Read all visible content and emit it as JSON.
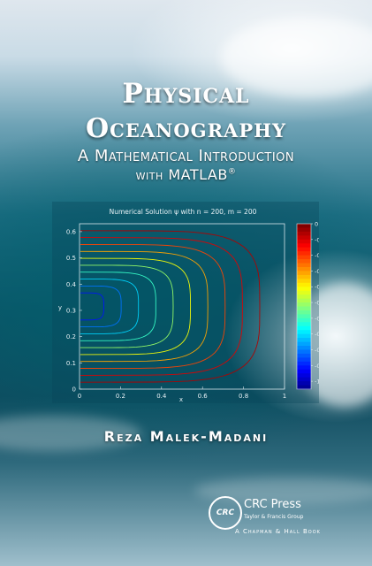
{
  "cover": {
    "title_line1": "Physical",
    "title_line2": "Oceanography",
    "subtitle_line1": "A Mathematical Introduction",
    "subtitle_line2": "with MATLAB",
    "registered_mark": "®",
    "author": "Reza Malek-Madani",
    "colors": {
      "title": "#ffffff",
      "sea_dark": "#0d5466",
      "sea_light": "#6fa3b6"
    }
  },
  "figure": {
    "title": "Numerical Solution ψ with n = 200, m = 200",
    "xlabel": "x",
    "ylabel": "y"
  },
  "publisher": {
    "logo_text": "CRC",
    "name": "CRC Press",
    "group": "Taylor & Francis Group",
    "imprint": "A Chapman & Hall Book"
  },
  "chart_data": {
    "type": "contour",
    "title": "Numerical Solution ψ with n = 200, m = 200",
    "xlabel": "x",
    "ylabel": "y",
    "xlim": [
      0,
      1
    ],
    "ylim": [
      0,
      0.63
    ],
    "xticks": [
      "0",
      "0.2",
      "0.4",
      "0.6",
      "0.8",
      "1"
    ],
    "yticks": [
      "0",
      "0.1",
      "0.2",
      "0.3",
      "0.4",
      "0.5",
      "0.6"
    ],
    "contour_levels": [
      -0.05,
      -0.1,
      -0.2,
      -0.3,
      -0.4,
      -0.5,
      -0.6,
      -0.7,
      -0.8,
      -0.9
    ],
    "colorbar": {
      "range": [
        -1.05,
        0
      ],
      "ticks": [
        "0",
        "-0.1",
        "-0.2",
        "-0.3",
        "-0.4",
        "-0.5",
        "-0.6",
        "-0.7",
        "-0.8",
        "-0.9",
        "-1"
      ]
    }
  }
}
